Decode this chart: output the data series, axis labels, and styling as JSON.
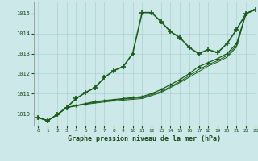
{
  "title": "Graphe pression niveau de la mer (hPa)",
  "bg_color": "#cce8e8",
  "grid_color": "#aad0d0",
  "line_color": "#1a5c1a",
  "xlim": [
    -0.5,
    23
  ],
  "ylim": [
    1009.4,
    1015.6
  ],
  "yticks": [
    1010,
    1011,
    1012,
    1013,
    1014,
    1015
  ],
  "xticks": [
    0,
    1,
    2,
    3,
    4,
    5,
    6,
    7,
    8,
    9,
    10,
    11,
    12,
    13,
    14,
    15,
    16,
    17,
    18,
    19,
    20,
    21,
    22,
    23
  ],
  "series": [
    {
      "y": [
        1009.8,
        1009.65,
        1009.95,
        1010.3,
        1010.75,
        1011.05,
        1011.3,
        1011.8,
        1012.15,
        1012.35,
        1013.0,
        1015.05,
        1015.05,
        1014.6,
        1014.1,
        1013.8,
        1013.3,
        1013.0,
        1013.2,
        1013.05,
        1013.5,
        1014.2,
        1015.0,
        1015.2
      ],
      "lw": 1.2,
      "marker": "+",
      "ms": 4,
      "mew": 1.2
    },
    {
      "y": [
        1009.8,
        1009.65,
        1009.95,
        1010.3,
        1010.4,
        1010.5,
        1010.6,
        1010.65,
        1010.7,
        1010.75,
        1010.8,
        1010.85,
        1011.0,
        1011.2,
        1011.45,
        1011.7,
        1012.0,
        1012.35,
        1012.55,
        1012.75,
        1013.0,
        1013.5,
        1015.0,
        1015.2
      ],
      "lw": 0.9,
      "marker": "+",
      "ms": 3,
      "mew": 0.9
    },
    {
      "y": [
        1009.8,
        1009.65,
        1009.95,
        1010.3,
        1010.4,
        1010.48,
        1010.56,
        1010.62,
        1010.68,
        1010.72,
        1010.76,
        1010.8,
        1010.95,
        1011.1,
        1011.35,
        1011.6,
        1011.9,
        1012.2,
        1012.45,
        1012.65,
        1012.9,
        1013.4,
        1015.0,
        1015.2
      ],
      "lw": 0.7,
      "marker": null,
      "ms": 0,
      "mew": 0
    },
    {
      "y": [
        1009.8,
        1009.65,
        1009.95,
        1010.3,
        1010.38,
        1010.46,
        1010.52,
        1010.58,
        1010.63,
        1010.67,
        1010.71,
        1010.75,
        1010.9,
        1011.05,
        1011.3,
        1011.55,
        1011.82,
        1012.1,
        1012.38,
        1012.58,
        1012.82,
        1013.32,
        1015.0,
        1015.2
      ],
      "lw": 0.7,
      "marker": null,
      "ms": 0,
      "mew": 0
    }
  ]
}
